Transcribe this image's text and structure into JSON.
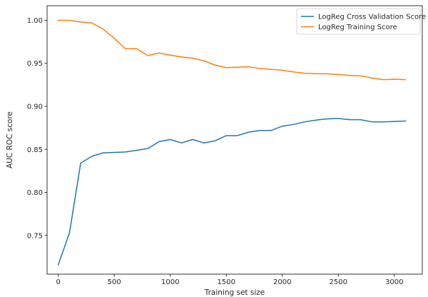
{
  "chart_data": {
    "type": "line",
    "title": "",
    "xlabel": "Training set size",
    "ylabel": "AUC ROC score",
    "xlim": [
      -100,
      3250
    ],
    "ylim": [
      0.705,
      1.017
    ],
    "xticks": [
      0,
      500,
      1000,
      1500,
      2000,
      2500,
      3000
    ],
    "yticks": [
      0.75,
      0.8,
      0.85,
      0.9,
      0.95,
      1.0
    ],
    "xtick_labels": [
      "0",
      "500",
      "1000",
      "1500",
      "2000",
      "2500",
      "3000"
    ],
    "ytick_labels": [
      "0.75",
      "0.80",
      "0.85",
      "0.90",
      "0.95",
      "1.00"
    ],
    "grid": false,
    "legend_position": "top-right",
    "x": [
      0,
      100,
      200,
      300,
      400,
      500,
      600,
      700,
      800,
      900,
      1000,
      1100,
      1200,
      1300,
      1400,
      1500,
      1600,
      1700,
      1800,
      1900,
      2000,
      2100,
      2200,
      2300,
      2400,
      2500,
      2600,
      2700,
      2800,
      2900,
      3000,
      3100
    ],
    "series": [
      {
        "name": "LogReg Cross Validation Score",
        "color": "#1f77b4",
        "values": [
          0.716,
          0.753,
          0.834,
          0.842,
          0.846,
          0.8465,
          0.847,
          0.849,
          0.851,
          0.859,
          0.8615,
          0.8575,
          0.8615,
          0.8575,
          0.86,
          0.866,
          0.866,
          0.87,
          0.872,
          0.872,
          0.877,
          0.879,
          0.882,
          0.884,
          0.8855,
          0.886,
          0.8845,
          0.8845,
          0.882,
          0.882,
          0.8825,
          0.883
        ]
      },
      {
        "name": "LogReg Training Score",
        "color": "#ff7f0e",
        "values": [
          1.0,
          1.0,
          0.998,
          0.997,
          0.99,
          0.979,
          0.967,
          0.967,
          0.959,
          0.962,
          0.9595,
          0.9575,
          0.956,
          0.953,
          0.948,
          0.945,
          0.9455,
          0.946,
          0.944,
          0.943,
          0.942,
          0.94,
          0.9385,
          0.938,
          0.938,
          0.937,
          0.936,
          0.9355,
          0.933,
          0.931,
          0.9315,
          0.931
        ]
      }
    ]
  }
}
